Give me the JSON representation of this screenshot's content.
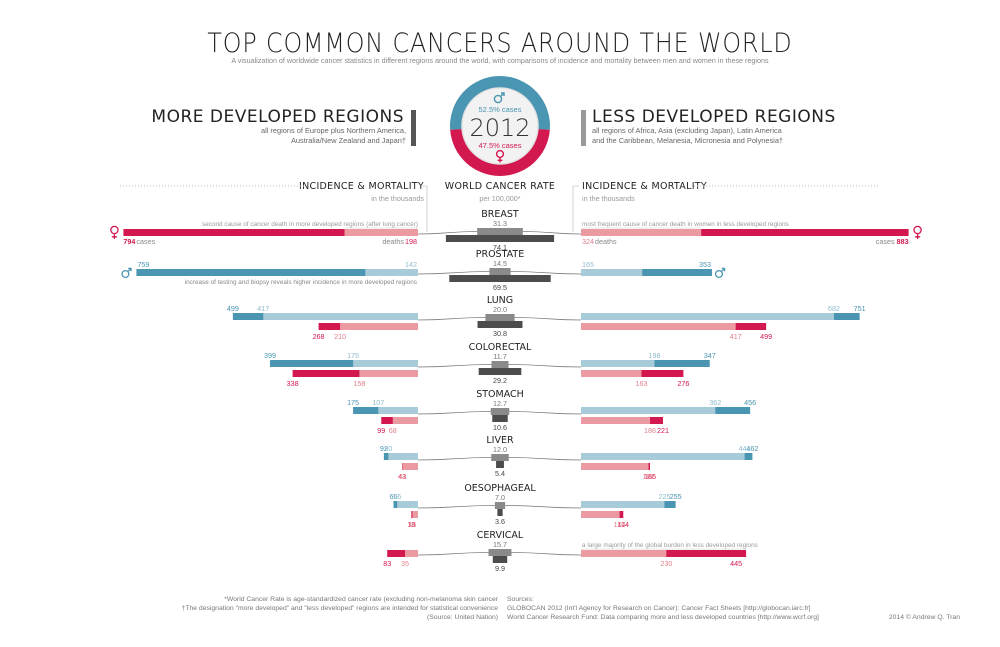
{
  "header": {
    "title": "TOP COMMON CANCERS AROUND THE WORLD",
    "subtitle": "A visualization of worldwide cancer statistics in different regions around the world, with comparisons of incidence and mortality between men and women in these regions"
  },
  "regions": {
    "left_title": "MORE DEVELOPED REGIONS",
    "left_desc_1": "all regions of Europe plus Northern America,",
    "left_desc_2": "Australia/New Zealand and Japan†",
    "right_title": "LESS DEVELOPED REGIONS",
    "right_desc_1": "all regions of Africa, Asia (excluding Japan), Latin America",
    "right_desc_2": "and the Caribbean, Melanesia, Micronesia and Polynesia†"
  },
  "center_badge": {
    "year": "2012",
    "male_share": "52.5% cases",
    "female_share": "47.5% cases",
    "male_fraction": 0.525
  },
  "section_headers": {
    "left_title": "INCIDENCE & MORTALITY",
    "left_sub": "in the thousands",
    "center_title": "WORLD CANCER RATE",
    "center_sub": "per 100,000*",
    "right_title": "INCIDENCE & MORTALITY",
    "right_sub": "in the thousands"
  },
  "colors": {
    "female_dark": "#d2184f",
    "female_light": "#ec9aa2",
    "male_dark": "#4a95b2",
    "male_light": "#a7cbd9",
    "rate_incidence": "#8a8a8a",
    "rate_mortality": "#4c4c4c",
    "connector": "#777777"
  },
  "chart_data": {
    "type": "bar",
    "value_units": "thousands",
    "rate_units": "per 100,000",
    "cancers": [
      {
        "name": "BREAST",
        "sex": "female",
        "world_rate": {
          "incidence": 31.3,
          "mortality": 74.1
        },
        "more_developed": {
          "incidence": 794,
          "mortality": 198
        },
        "less_developed": {
          "incidence": 883,
          "mortality": 324
        },
        "note_left": "second cause of cancer death in more developed regions (after lung cancer)",
        "note_right": "most frequent cause of cancer death in women in less developed regions",
        "labels_left": [
          "794",
          "cases",
          "deaths",
          "198"
        ],
        "labels_right": [
          "324",
          "deaths",
          "cases",
          "883"
        ]
      },
      {
        "name": "PROSTATE",
        "sex": "male",
        "world_rate": {
          "incidence": 14.5,
          "mortality": 69.5
        },
        "more_developed": {
          "incidence": 759,
          "mortality": 142
        },
        "less_developed": {
          "incidence": 353,
          "mortality": 165
        },
        "note_left": "increase of testing and biopsy reveals higher incidence in more developed regions",
        "note_right": ""
      },
      {
        "name": "LUNG",
        "sex": "both",
        "world_rate": {
          "incidence": 20.0,
          "mortality": 30.8
        },
        "more_developed": {
          "male": {
            "incidence": 499,
            "mortality": 417
          },
          "female": {
            "incidence": 268,
            "mortality": 210
          }
        },
        "less_developed": {
          "male": {
            "incidence": 751,
            "mortality": 682
          },
          "female": {
            "incidence": 499,
            "mortality": 417
          }
        }
      },
      {
        "name": "COLORECTAL",
        "sex": "both",
        "world_rate": {
          "incidence": 11.7,
          "mortality": 29.2
        },
        "more_developed": {
          "male": {
            "incidence": 399,
            "mortality": 175
          },
          "female": {
            "incidence": 338,
            "mortality": 158
          }
        },
        "less_developed": {
          "male": {
            "incidence": 347,
            "mortality": 198
          },
          "female": {
            "incidence": 276,
            "mortality": 163
          }
        }
      },
      {
        "name": "STOMACH",
        "sex": "both",
        "world_rate": {
          "incidence": 12.7,
          "mortality": 10.6
        },
        "more_developed": {
          "male": {
            "incidence": 175,
            "mortality": 107
          },
          "female": {
            "incidence": 99,
            "mortality": 68
          }
        },
        "less_developed": {
          "male": {
            "incidence": 456,
            "mortality": 362
          },
          "female": {
            "incidence": 221,
            "mortality": 186
          }
        }
      },
      {
        "name": "LIVER",
        "sex": "both",
        "world_rate": {
          "incidence": 12.0,
          "mortality": 5.4
        },
        "more_developed": {
          "male": {
            "incidence": 92,
            "mortality": 80
          },
          "female": {
            "incidence": 43,
            "mortality": 42
          }
        },
        "less_developed": {
          "male": {
            "incidence": 462,
            "mortality": 441
          },
          "female": {
            "incidence": 186,
            "mortality": 182
          }
        }
      },
      {
        "name": "OESOPHAGEAL",
        "sex": "both",
        "world_rate": {
          "incidence": 7.0,
          "mortality": 3.6
        },
        "more_developed": {
          "male": {
            "incidence": 66,
            "mortality": 56
          },
          "female": {
            "incidence": 18,
            "mortality": 15
          }
        },
        "less_developed": {
          "male": {
            "incidence": 255,
            "mortality": 225
          },
          "female": {
            "incidence": 114,
            "mortality": 104
          }
        }
      },
      {
        "name": "CERVICAL",
        "sex": "female",
        "world_rate": {
          "incidence": 15.7,
          "mortality": 9.9
        },
        "more_developed": {
          "incidence": 83,
          "mortality": 35
        },
        "less_developed": {
          "incidence": 445,
          "mortality": 230
        },
        "note_left": "",
        "note_right": "a large majority of the global burden in less developed regions"
      }
    ]
  },
  "footer": {
    "note_1": "*World Cancer Rate is age-standardized cancer rate (excluding non-melanoma skin cancer",
    "note_2": "†The designation \"more developed\" and \"less developed\" regions are intended for statistical convenience",
    "note_3": "(Source: United Nation)",
    "sources_label": "Sources:",
    "source_1": "GLOBOCAN 2012 (Int'l Agency for Research on Cancer): Cancer Fact Sheets [http://globocan.iarc.fr]",
    "source_2": "World Cancer Research Fund: Data comparing more and less developed countries [http://www.wcrf.org]",
    "credit": "2014 © Andrew Q. Tran"
  }
}
